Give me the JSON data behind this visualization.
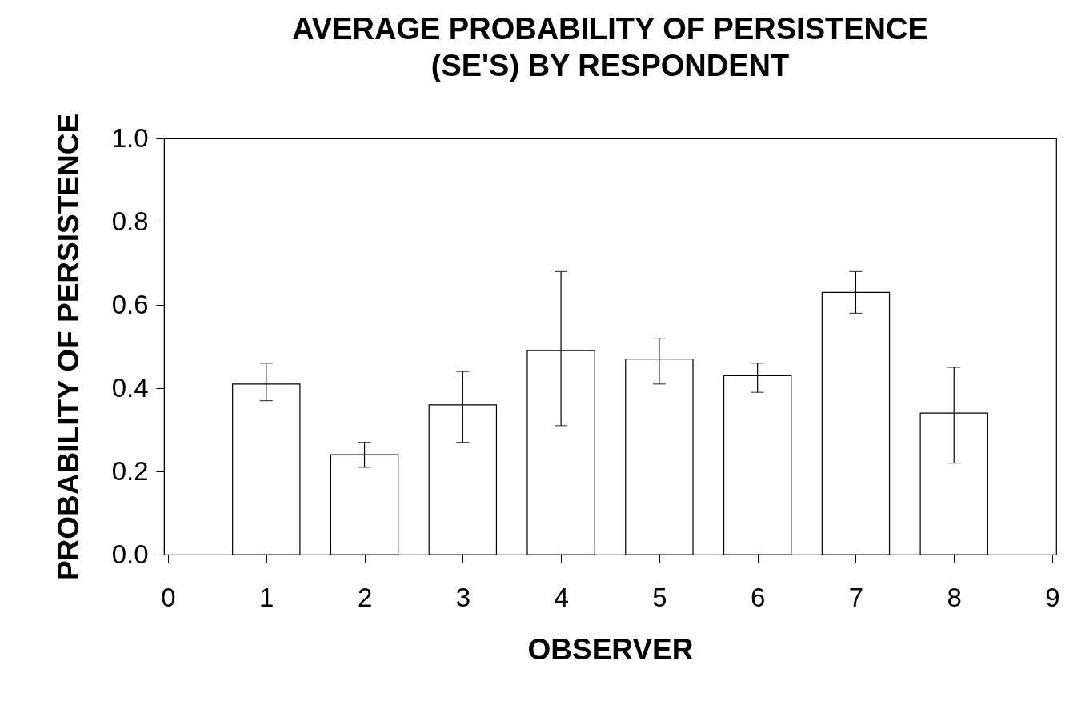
{
  "chart_data": {
    "type": "bar",
    "title": [
      "AVERAGE PROBABILITY OF PERSISTENCE",
      "(SE'S) BY RESPONDENT"
    ],
    "xlabel": "OBSERVER",
    "ylabel": "PROBABILITY OF PERSISTENCE",
    "x": [
      1,
      2,
      3,
      4,
      5,
      6,
      7,
      8
    ],
    "values": [
      0.41,
      0.24,
      0.36,
      0.49,
      0.47,
      0.43,
      0.63,
      0.34
    ],
    "errors": [
      [
        0.37,
        0.46
      ],
      [
        0.21,
        0.27
      ],
      [
        0.27,
        0.44
      ],
      [
        0.31,
        0.68
      ],
      [
        0.41,
        0.52
      ],
      [
        0.39,
        0.46
      ],
      [
        0.58,
        0.68
      ],
      [
        0.22,
        0.45
      ]
    ],
    "color": "#ffffff",
    "xlim": [
      0,
      9
    ],
    "xticks": [
      0,
      1,
      2,
      3,
      4,
      5,
      6,
      7,
      8,
      9
    ],
    "ylim": [
      0,
      1
    ],
    "yticks": [
      {
        "value": 0,
        "label": "0.0"
      },
      {
        "value": 0.2,
        "label": "0.2"
      },
      {
        "value": 0.4,
        "label": "0.4"
      },
      {
        "value": 0.6,
        "label": "0.6"
      },
      {
        "value": 0.8,
        "label": "0.8"
      },
      {
        "value": 1,
        "label": "1.0"
      }
    ]
  }
}
